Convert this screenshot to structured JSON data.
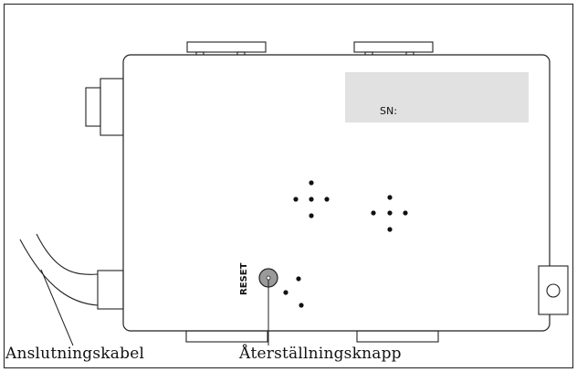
{
  "labels": {
    "serial": "SN:",
    "reset": "RESET",
    "cable": "Anslutningskabel",
    "reset_button": "Återställningsknapp"
  },
  "icons": [
    "device-outline",
    "reset-button-icon",
    "connector-icon",
    "speaker-holes"
  ],
  "colors": {
    "stroke": "#222222",
    "label_panel": "#e1e1e1",
    "reset_button_fill": "#9a9a9a"
  }
}
